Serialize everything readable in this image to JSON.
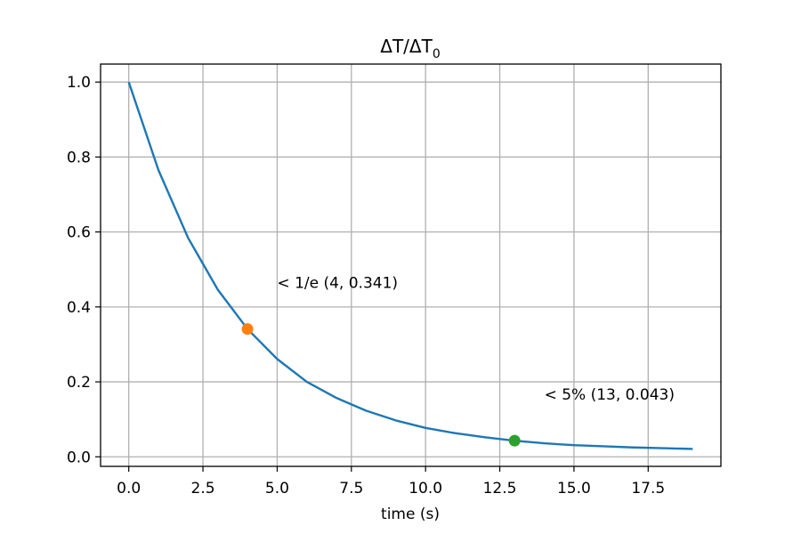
{
  "chart_data": {
    "type": "line",
    "title": "ΔT/ΔT",
    "title_subscript": "0",
    "xlabel": "time (s)",
    "ylabel": "",
    "xlim": [
      -0.95,
      19.95
    ],
    "ylim": [
      -0.0255,
      1.048
    ],
    "xticks": [
      0,
      2.5,
      5,
      7.5,
      10,
      12.5,
      15,
      17.5
    ],
    "xtick_labels": [
      "0.0",
      "2.5",
      "5.0",
      "7.5",
      "10.0",
      "12.5",
      "15.0",
      "17.5"
    ],
    "yticks": [
      0,
      0.2,
      0.4,
      0.6,
      0.8,
      1.0
    ],
    "ytick_labels": [
      "0.0",
      "0.2",
      "0.4",
      "0.6",
      "0.8",
      "1.0"
    ],
    "grid": true,
    "series": [
      {
        "color": "#1f77b4",
        "x": [
          0,
          1,
          2,
          3,
          4,
          5,
          6,
          7,
          8,
          9,
          10,
          11,
          12,
          13,
          14,
          15,
          16,
          17,
          18,
          19
        ],
        "values": [
          1.0,
          0.765,
          0.584,
          0.446,
          0.341,
          0.261,
          0.2,
          0.157,
          0.123,
          0.097,
          0.077,
          0.063,
          0.052,
          0.043,
          0.036,
          0.031,
          0.028,
          0.025,
          0.023,
          0.021
        ]
      }
    ],
    "markers": [
      {
        "x": 4,
        "y": 0.341,
        "color": "#ff7f0e"
      },
      {
        "x": 13,
        "y": 0.043,
        "color": "#2ca02c"
      }
    ],
    "annotations": [
      {
        "text": "< 1/e (4, 0.341)",
        "x": 5,
        "y": 0.451
      },
      {
        "text": "< 5% (13, 0.043)",
        "x": 14,
        "y": 0.153
      }
    ]
  }
}
